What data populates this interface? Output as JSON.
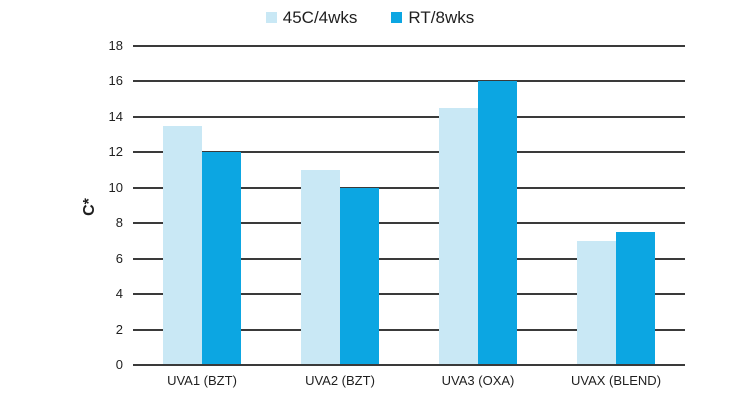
{
  "chart_data": {
    "type": "bar",
    "title": "",
    "categories": [
      "UVA1 (BZT)",
      "UVA2 (BZT)",
      "UVA3 (OXA)",
      "UVAX (BLEND)"
    ],
    "series": [
      {
        "name": "45C/4wks",
        "color": "#c9e8f5",
        "values": [
          13.5,
          11,
          14.5,
          7
        ]
      },
      {
        "name": "RT/8wks",
        "color": "#0ca6e2",
        "values": [
          12,
          10,
          16,
          7.5
        ]
      }
    ],
    "xlabel": "",
    "ylabel": "C*",
    "ylim": [
      0,
      18
    ],
    "ytick_step": 2,
    "yticks": [
      0,
      2,
      4,
      6,
      8,
      10,
      12,
      14,
      16,
      18
    ],
    "grid": "horizontal",
    "gridline_color": "#3a3a3a",
    "legend_position": "top-center",
    "text_color": "#1f1f1f",
    "background_color": "#ffffff"
  }
}
